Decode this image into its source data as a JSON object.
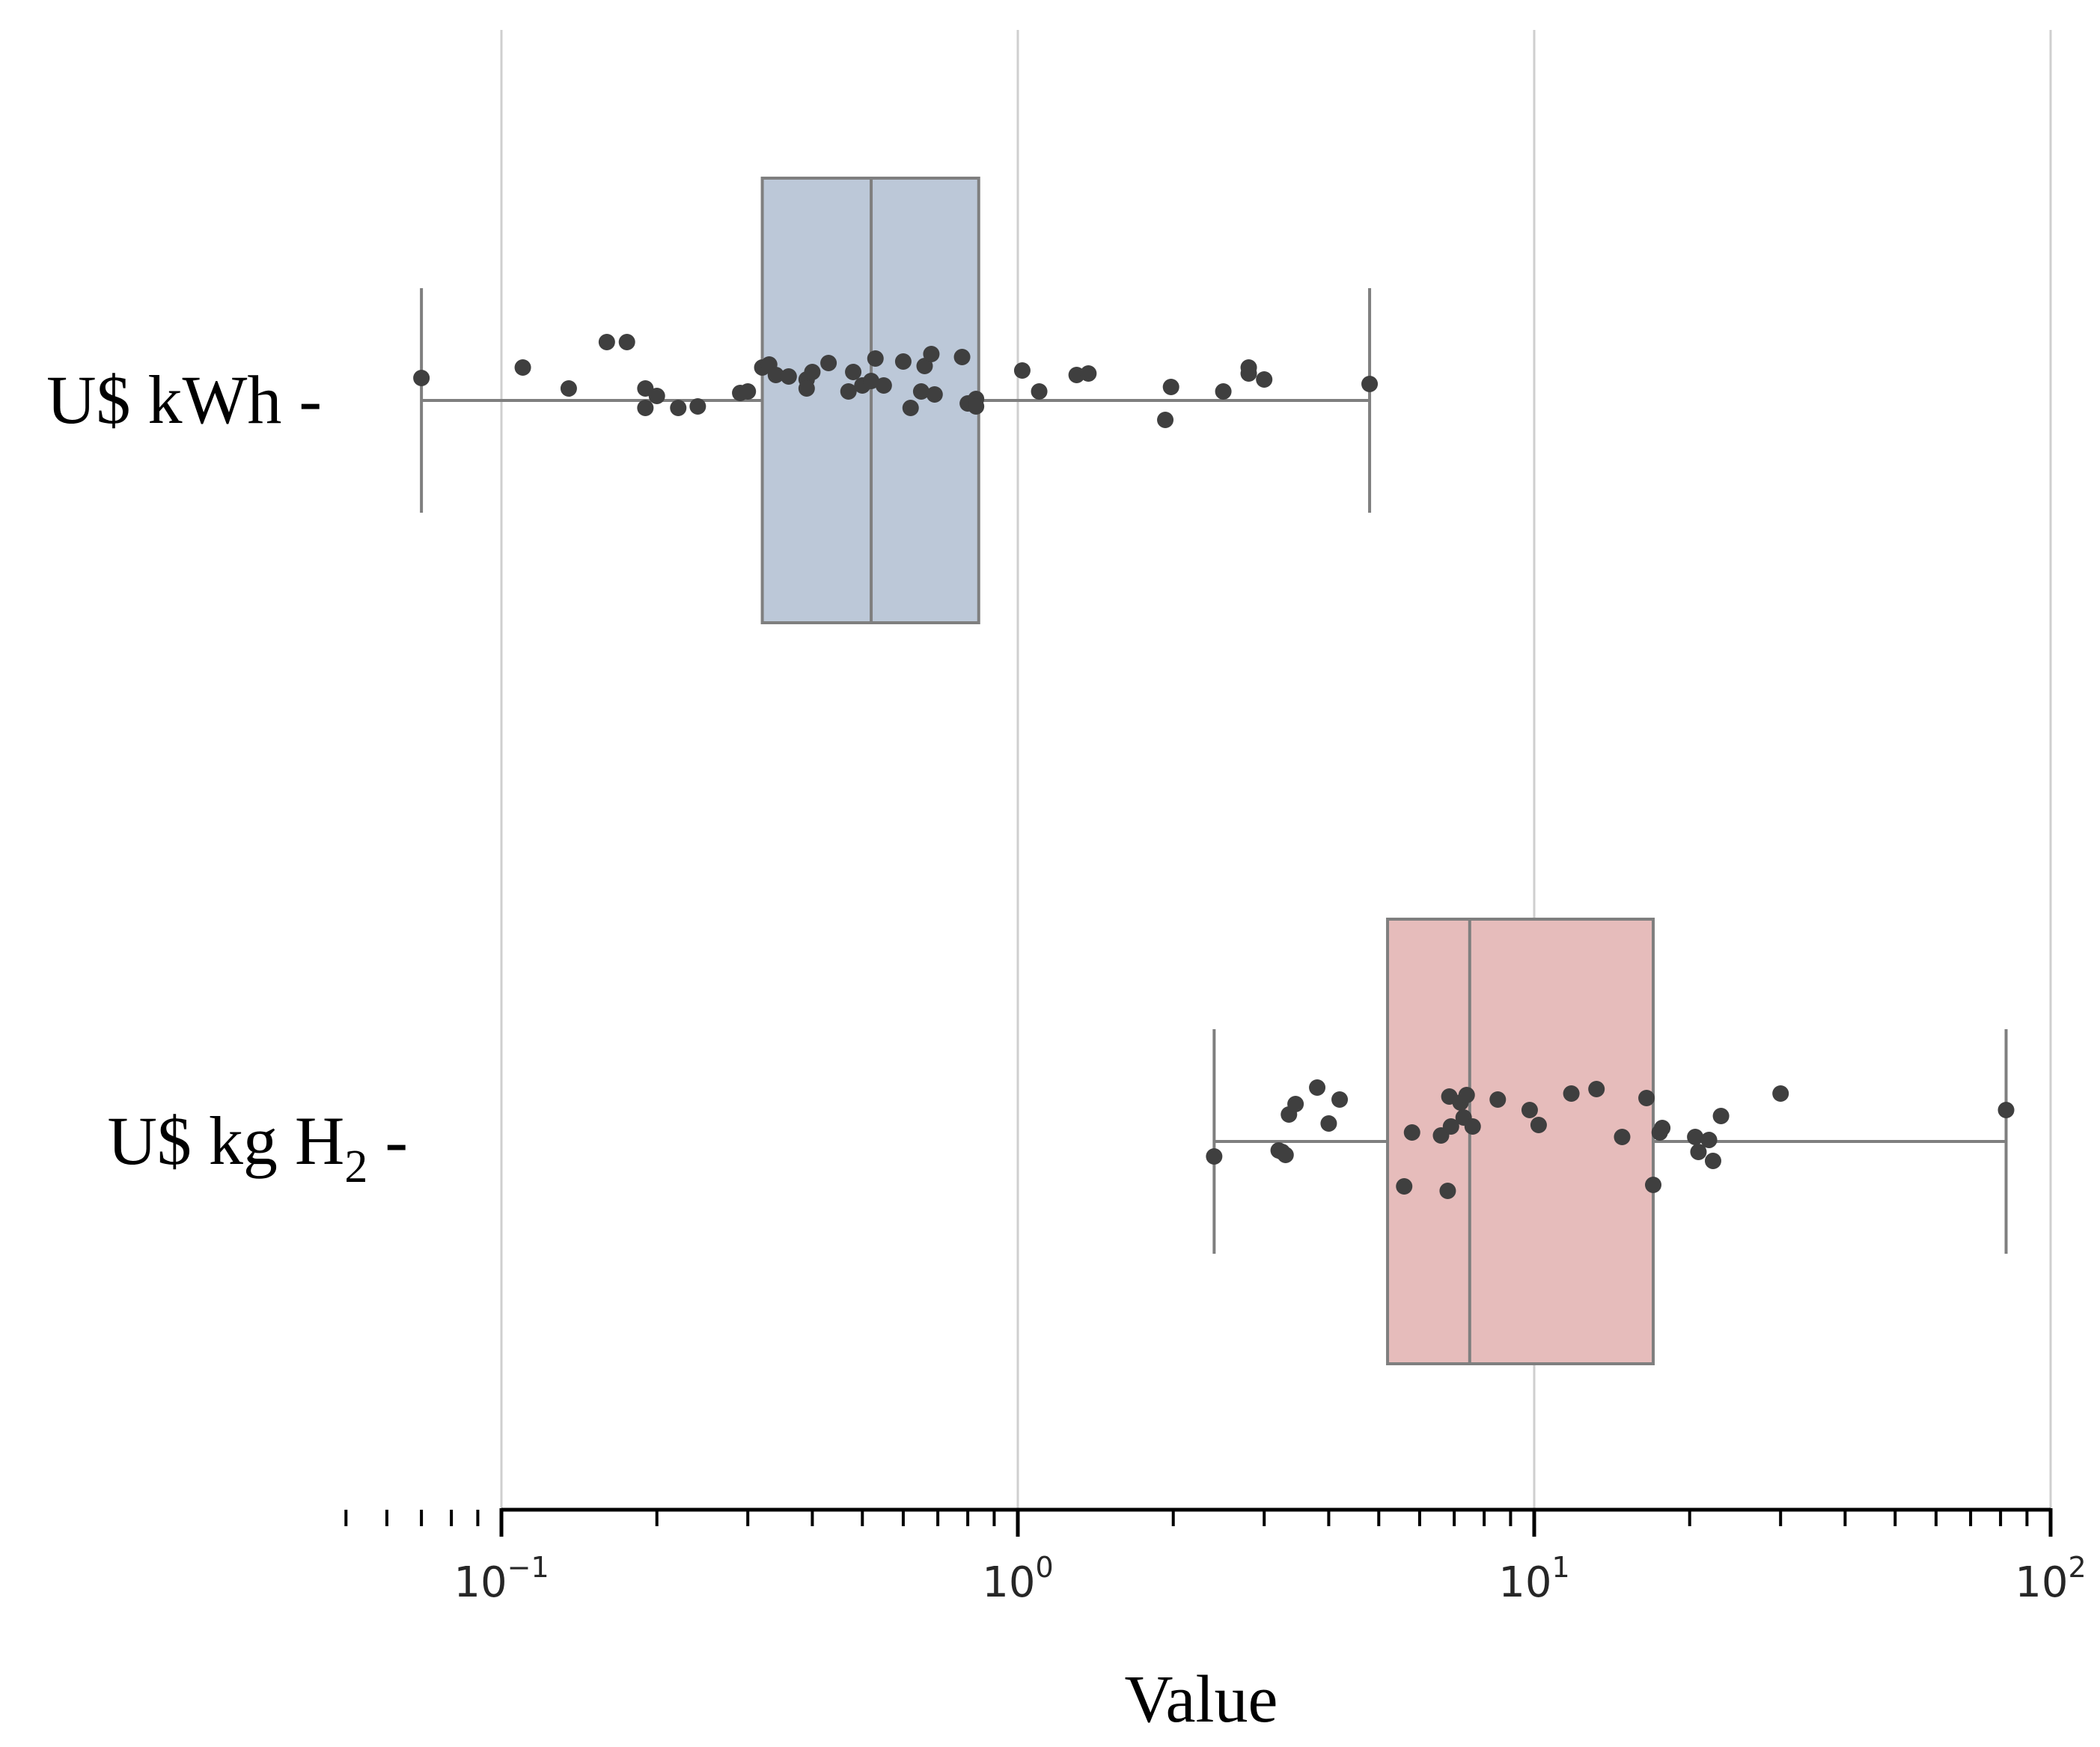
{
  "chart_data": {
    "type": "boxplot",
    "xscale": "log",
    "xlim": [
      0.05,
      100
    ],
    "xlabel": "Value",
    "ylabel": "",
    "grid": "vertical",
    "major_ticks": [
      {
        "value": 0.1,
        "base": "10",
        "exp": "−1"
      },
      {
        "value": 1,
        "base": "10",
        "exp": "0"
      },
      {
        "value": 10,
        "base": "10",
        "exp": "1"
      },
      {
        "value": 100,
        "base": "10",
        "exp": "2"
      }
    ],
    "series": [
      {
        "name": "U$ kWh",
        "label_main": "U$ kWh",
        "label_sub": "",
        "label_dash": "-",
        "color": "#bcc8d8",
        "min": 0.07,
        "q1": 0.32,
        "median": 0.52,
        "q3": 0.84,
        "max": 4.8,
        "points": [
          0.07,
          0.11,
          0.135,
          0.16,
          0.175,
          0.19,
          0.19,
          0.2,
          0.22,
          0.24,
          0.29,
          0.3,
          0.32,
          0.33,
          0.34,
          0.36,
          0.39,
          0.39,
          0.4,
          0.43,
          0.47,
          0.48,
          0.5,
          0.52,
          0.53,
          0.55,
          0.6,
          0.62,
          0.65,
          0.66,
          0.68,
          0.69,
          0.78,
          0.8,
          0.83,
          0.83,
          1.02,
          1.1,
          1.3,
          1.37,
          1.93,
          1.98,
          2.5,
          2.8,
          2.8,
          3.0,
          4.8
        ],
        "jitter": [
          0.15,
          0.22,
          0.08,
          0.39,
          0.39,
          0.08,
          -0.05,
          0.03,
          -0.05,
          -0.04,
          0.05,
          0.06,
          0.22,
          0.24,
          0.17,
          0.16,
          0.14,
          0.08,
          0.19,
          0.25,
          0.06,
          0.19,
          0.1,
          0.13,
          0.28,
          0.1,
          0.26,
          -0.05,
          0.06,
          0.23,
          0.31,
          0.04,
          0.29,
          -0.02,
          0.01,
          -0.04,
          0.2,
          0.06,
          0.17,
          0.18,
          -0.13,
          0.09,
          0.06,
          0.18,
          0.22,
          0.14,
          0.11
        ]
      },
      {
        "name": "U$ kg H2",
        "label_main": "U$ kg H",
        "label_sub": "2",
        "label_dash": "-",
        "color": "#e6bcbb",
        "min": 2.4,
        "q1": 5.2,
        "median": 7.5,
        "q3": 17.0,
        "max": 82.0,
        "points": [
          2.4,
          3.2,
          3.25,
          3.3,
          3.35,
          3.45,
          3.8,
          4.0,
          4.2,
          5.6,
          5.8,
          6.6,
          6.8,
          6.85,
          6.9,
          7.2,
          7.3,
          7.4,
          7.6,
          8.5,
          9.8,
          10.2,
          11.8,
          13.2,
          14.8,
          16.5,
          17.0,
          17.5,
          17.7,
          20.5,
          20.8,
          21.8,
          22.2,
          23.0,
          30.0,
          82.0
        ],
        "jitter": [
          -0.1,
          -0.06,
          -0.07,
          -0.09,
          0.18,
          0.25,
          0.36,
          0.12,
          0.28,
          -0.3,
          0.06,
          0.04,
          -0.33,
          0.3,
          0.1,
          0.26,
          0.16,
          0.31,
          0.1,
          0.28,
          0.21,
          0.11,
          0.32,
          0.35,
          0.03,
          0.29,
          -0.29,
          0.06,
          0.09,
          0.03,
          -0.07,
          0.01,
          -0.13,
          0.17,
          0.32,
          0.21
        ]
      }
    ]
  }
}
